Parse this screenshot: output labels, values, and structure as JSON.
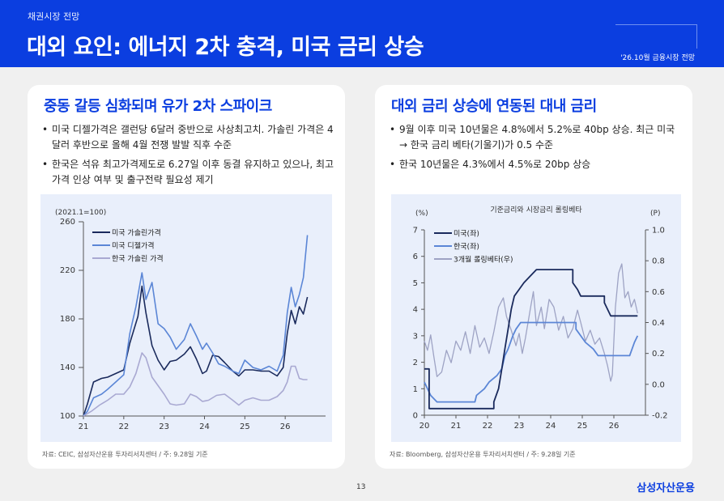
{
  "header": {
    "section_label": "채권시장 전망",
    "title": "대외 요인: 에너지 2차 충격, 미국 금리 상승",
    "report_tag": "'26.10월 금융시장 전망"
  },
  "left_card": {
    "title": "중동 갈등 심화되며 유가 2차 스파이크",
    "bullets": [
      "미국 디젤가격은 갤런당 6달러 중반으로 사상최고치. 가솔린 가격은 4달러 후반으로 올해 4월 전쟁 발발 직후 수준",
      "한국은 석유 최고가격제도로 6.27일 이후 동결 유지하고 있으나, 최고가격 인상 여부 및 출구전략 필요성 제기"
    ],
    "source": "자료: CEIC, 삼성자산운용 투자리서치센터 / 주: 9.28일 기준"
  },
  "right_card": {
    "title": "대외 금리 상승에 연동된 대내 금리",
    "bullets": [
      "9월 이후 미국 10년물은 4.8%에서 5.2%로 40bp 상승. 최근 미국 → 한국 금리 베타(기울기)가 0.5 수준",
      "한국 10년물은 4.3%에서 4.5%로 20bp 상승"
    ],
    "source": "자료: Bloomberg, 삼성자산운용 투자리서치센터 / 주: 9.28일 기준"
  },
  "page_number": "13",
  "brand": "삼성자산운용",
  "colors": {
    "brand_blue": "#0b3ee0",
    "navy": "#1a2a5c",
    "mid_blue": "#5b86d6",
    "lavender": "#a9a9d2",
    "gray_blue": "#9ea3c4"
  },
  "chart_data": [
    {
      "type": "line",
      "unit_label": "(2021.1=100)",
      "x_ticks": [
        "21",
        "22",
        "23",
        "24",
        "25",
        "26"
      ],
      "ylim": [
        100,
        260
      ],
      "y_ticks": [
        100,
        140,
        180,
        220,
        260
      ],
      "legend_position": "top-left",
      "series": [
        {
          "name": "미국 가솔린가격",
          "color": "#1a2a5c",
          "points": [
            [
              2021.0,
              100
            ],
            [
              2021.1,
              110
            ],
            [
              2021.25,
              128
            ],
            [
              2021.45,
              131
            ],
            [
              2021.6,
              132
            ],
            [
              2021.8,
              135
            ],
            [
              2022.0,
              138
            ],
            [
              2022.15,
              160
            ],
            [
              2022.35,
              182
            ],
            [
              2022.45,
              207
            ],
            [
              2022.55,
              185
            ],
            [
              2022.7,
              158
            ],
            [
              2022.85,
              146
            ],
            [
              2023.0,
              138
            ],
            [
              2023.15,
              145
            ],
            [
              2023.3,
              146
            ],
            [
              2023.5,
              151
            ],
            [
              2023.65,
              157
            ],
            [
              2023.8,
              147
            ],
            [
              2023.95,
              135
            ],
            [
              2024.05,
              137
            ],
            [
              2024.2,
              150
            ],
            [
              2024.35,
              149
            ],
            [
              2024.5,
              144
            ],
            [
              2024.7,
              137
            ],
            [
              2024.85,
              133
            ],
            [
              2025.0,
              138
            ],
            [
              2025.2,
              138
            ],
            [
              2025.4,
              137
            ],
            [
              2025.6,
              137
            ],
            [
              2025.8,
              133
            ],
            [
              2025.95,
              140
            ],
            [
              2026.05,
              168
            ],
            [
              2026.15,
              187
            ],
            [
              2026.25,
              176
            ],
            [
              2026.35,
              190
            ],
            [
              2026.45,
              184
            ],
            [
              2026.55,
              198
            ]
          ]
        },
        {
          "name": "미국 디젤가격",
          "color": "#5b86d6",
          "points": [
            [
              2021.0,
              100
            ],
            [
              2021.1,
              104
            ],
            [
              2021.25,
              115
            ],
            [
              2021.45,
              118
            ],
            [
              2021.6,
              122
            ],
            [
              2021.8,
              128
            ],
            [
              2022.0,
              134
            ],
            [
              2022.15,
              168
            ],
            [
              2022.3,
              190
            ],
            [
              2022.45,
              218
            ],
            [
              2022.55,
              196
            ],
            [
              2022.7,
              210
            ],
            [
              2022.85,
              176
            ],
            [
              2023.0,
              172
            ],
            [
              2023.15,
              165
            ],
            [
              2023.3,
              155
            ],
            [
              2023.5,
              163
            ],
            [
              2023.65,
              176
            ],
            [
              2023.8,
              166
            ],
            [
              2023.95,
              155
            ],
            [
              2024.05,
              160
            ],
            [
              2024.2,
              152
            ],
            [
              2024.35,
              143
            ],
            [
              2024.5,
              141
            ],
            [
              2024.7,
              137
            ],
            [
              2024.85,
              135
            ],
            [
              2025.0,
              146
            ],
            [
              2025.2,
              140
            ],
            [
              2025.4,
              138
            ],
            [
              2025.6,
              141
            ],
            [
              2025.8,
              137
            ],
            [
              2025.95,
              150
            ],
            [
              2026.05,
              185
            ],
            [
              2026.15,
              206
            ],
            [
              2026.25,
              190
            ],
            [
              2026.35,
              200
            ],
            [
              2026.45,
              214
            ],
            [
              2026.55,
              249
            ]
          ]
        },
        {
          "name": "한국 가솔린 가격",
          "color": "#a9a9d2",
          "points": [
            [
              2021.0,
              100
            ],
            [
              2021.2,
              104
            ],
            [
              2021.4,
              109
            ],
            [
              2021.6,
              113
            ],
            [
              2021.8,
              118
            ],
            [
              2022.0,
              118
            ],
            [
              2022.15,
              124
            ],
            [
              2022.3,
              135
            ],
            [
              2022.45,
              152
            ],
            [
              2022.55,
              148
            ],
            [
              2022.7,
              132
            ],
            [
              2022.85,
              125
            ],
            [
              2023.0,
              118
            ],
            [
              2023.15,
              110
            ],
            [
              2023.3,
              109
            ],
            [
              2023.5,
              110
            ],
            [
              2023.65,
              118
            ],
            [
              2023.8,
              116
            ],
            [
              2023.95,
              112
            ],
            [
              2024.1,
              113
            ],
            [
              2024.3,
              117
            ],
            [
              2024.5,
              118
            ],
            [
              2024.7,
              113
            ],
            [
              2024.85,
              109
            ],
            [
              2025.0,
              113
            ],
            [
              2025.2,
              115
            ],
            [
              2025.4,
              113
            ],
            [
              2025.6,
              113
            ],
            [
              2025.8,
              116
            ],
            [
              2025.95,
              121
            ],
            [
              2026.05,
              128
            ],
            [
              2026.15,
              141
            ],
            [
              2026.25,
              141
            ],
            [
              2026.35,
              131
            ],
            [
              2026.45,
              130
            ],
            [
              2026.55,
              130
            ]
          ]
        }
      ]
    },
    {
      "type": "line",
      "title": "기준금리와 시장금리 롤링베타",
      "left_unit": "(%)",
      "right_unit": "(P)",
      "x_ticks": [
        "20",
        "21",
        "22",
        "23",
        "24",
        "25",
        "26"
      ],
      "ylim_left": [
        0,
        7
      ],
      "y_ticks_left": [
        0,
        1,
        2,
        3,
        4,
        5,
        6,
        7
      ],
      "ylim_right": [
        -0.2,
        1.0
      ],
      "y_ticks_right": [
        "1.0",
        "0.8",
        "0.6",
        "0.4",
        "0.2",
        "0.0",
        "-0.2"
      ],
      "legend_position": "top-left",
      "series": [
        {
          "name": "미국(좌)",
          "axis": "left",
          "color": "#1a2a5c",
          "points": [
            [
              2020.0,
              1.75
            ],
            [
              2020.15,
              1.75
            ],
            [
              2020.15,
              0.25
            ],
            [
              2022.2,
              0.25
            ],
            [
              2022.2,
              0.5
            ],
            [
              2022.35,
              1.0
            ],
            [
              2022.45,
              1.75
            ],
            [
              2022.55,
              2.5
            ],
            [
              2022.65,
              3.25
            ],
            [
              2022.75,
              4.0
            ],
            [
              2022.85,
              4.5
            ],
            [
              2023.0,
              4.75
            ],
            [
              2023.15,
              5.0
            ],
            [
              2023.35,
              5.25
            ],
            [
              2023.55,
              5.5
            ],
            [
              2024.7,
              5.5
            ],
            [
              2024.7,
              5.0
            ],
            [
              2024.85,
              4.75
            ],
            [
              2024.95,
              4.5
            ],
            [
              2025.7,
              4.5
            ],
            [
              2025.7,
              4.25
            ],
            [
              2025.8,
              4.0
            ],
            [
              2025.9,
              3.75
            ],
            [
              2026.75,
              3.75
            ]
          ]
        },
        {
          "name": "한국(좌)",
          "axis": "left",
          "color": "#5b86d6",
          "points": [
            [
              2020.0,
              1.25
            ],
            [
              2020.2,
              0.75
            ],
            [
              2020.4,
              0.5
            ],
            [
              2021.6,
              0.5
            ],
            [
              2021.65,
              0.75
            ],
            [
              2021.9,
              1.0
            ],
            [
              2022.05,
              1.25
            ],
            [
              2022.3,
              1.5
            ],
            [
              2022.45,
              1.75
            ],
            [
              2022.55,
              2.25
            ],
            [
              2022.65,
              2.5
            ],
            [
              2022.8,
              3.0
            ],
            [
              2022.9,
              3.25
            ],
            [
              2023.05,
              3.5
            ],
            [
              2024.8,
              3.5
            ],
            [
              2024.8,
              3.25
            ],
            [
              2024.95,
              3.0
            ],
            [
              2025.1,
              2.75
            ],
            [
              2025.35,
              2.5
            ],
            [
              2025.5,
              2.25
            ],
            [
              2026.5,
              2.25
            ],
            [
              2026.65,
              2.75
            ],
            [
              2026.75,
              3.0
            ]
          ]
        },
        {
          "name": "3개월 롤링베타(우)",
          "axis": "right",
          "color": "#9ea3c4",
          "points": [
            [
              2020.0,
              0.28
            ],
            [
              2020.1,
              0.22
            ],
            [
              2020.2,
              0.32
            ],
            [
              2020.3,
              0.18
            ],
            [
              2020.4,
              0.05
            ],
            [
              2020.55,
              0.08
            ],
            [
              2020.7,
              0.22
            ],
            [
              2020.85,
              0.14
            ],
            [
              2021.0,
              0.28
            ],
            [
              2021.15,
              0.22
            ],
            [
              2021.3,
              0.34
            ],
            [
              2021.45,
              0.2
            ],
            [
              2021.6,
              0.38
            ],
            [
              2021.75,
              0.24
            ],
            [
              2021.9,
              0.3
            ],
            [
              2022.05,
              0.2
            ],
            [
              2022.2,
              0.34
            ],
            [
              2022.35,
              0.5
            ],
            [
              2022.5,
              0.56
            ],
            [
              2022.6,
              0.44
            ],
            [
              2022.75,
              0.35
            ],
            [
              2022.9,
              0.25
            ],
            [
              2023.0,
              0.33
            ],
            [
              2023.1,
              0.2
            ],
            [
              2023.2,
              0.3
            ],
            [
              2023.35,
              0.48
            ],
            [
              2023.45,
              0.6
            ],
            [
              2023.55,
              0.38
            ],
            [
              2023.7,
              0.5
            ],
            [
              2023.8,
              0.36
            ],
            [
              2023.95,
              0.55
            ],
            [
              2024.1,
              0.5
            ],
            [
              2024.25,
              0.35
            ],
            [
              2024.4,
              0.44
            ],
            [
              2024.55,
              0.3
            ],
            [
              2024.7,
              0.36
            ],
            [
              2024.85,
              0.48
            ],
            [
              2024.95,
              0.4
            ],
            [
              2025.1,
              0.28
            ],
            [
              2025.25,
              0.35
            ],
            [
              2025.4,
              0.26
            ],
            [
              2025.55,
              0.3
            ],
            [
              2025.7,
              0.2
            ],
            [
              2025.8,
              0.12
            ],
            [
              2025.9,
              0.02
            ],
            [
              2025.95,
              0.06
            ],
            [
              2026.05,
              0.5
            ],
            [
              2026.15,
              0.72
            ],
            [
              2026.25,
              0.78
            ],
            [
              2026.35,
              0.56
            ],
            [
              2026.45,
              0.6
            ],
            [
              2026.55,
              0.5
            ],
            [
              2026.65,
              0.55
            ],
            [
              2026.75,
              0.46
            ]
          ]
        }
      ]
    }
  ]
}
